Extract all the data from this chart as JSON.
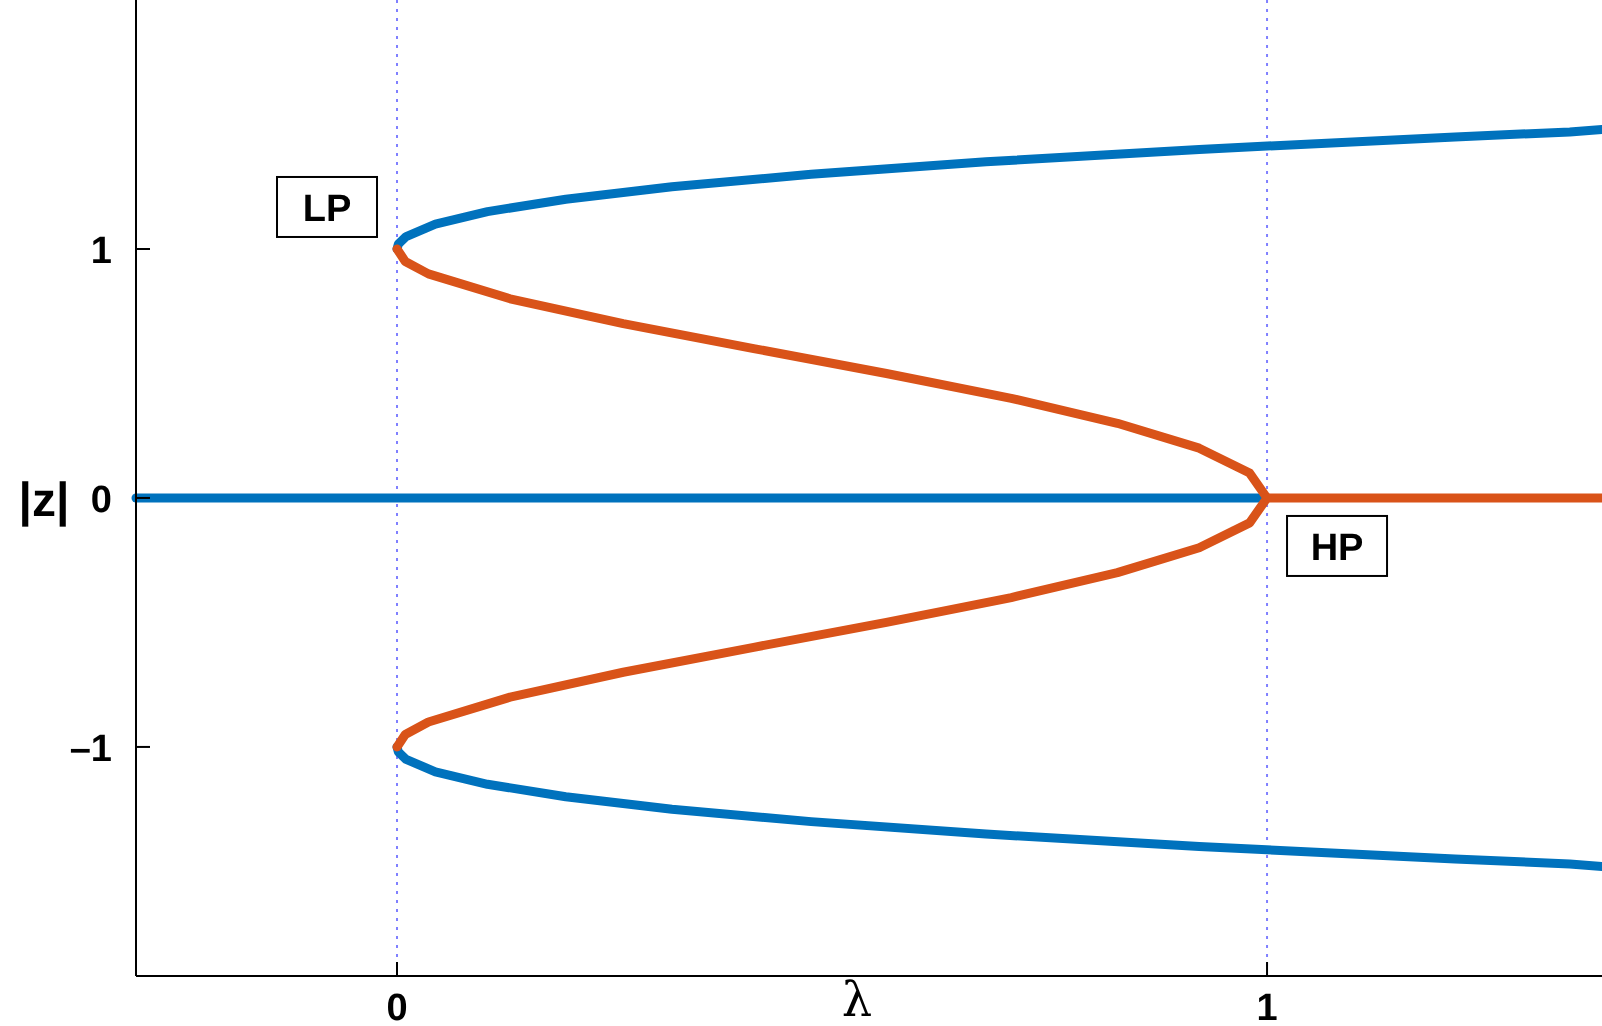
{
  "chart_data": {
    "type": "line",
    "xlabel": "λ",
    "ylabel": "|z|",
    "xlim": [
      -0.3,
      1.385
    ],
    "ylim": [
      -1.92,
      2.0
    ],
    "xticks": [
      0,
      1
    ],
    "yticks": [
      {
        "value": -1,
        "label": "–1"
      },
      0,
      1
    ],
    "grid": false,
    "line_style": "solid",
    "marker": "none",
    "series": [
      {
        "color": "#0072bd",
        "x": [
          0,
          0.0016,
          0.0105,
          0.0441,
          0.104,
          0.194,
          0.316,
          0.476,
          0.677,
          0.922,
          1.216,
          1.348,
          1.385
        ],
        "values": [
          1,
          1.02,
          1.05,
          1.1,
          1.15,
          1.2,
          1.25,
          1.3,
          1.35,
          1.4,
          1.45,
          1.47,
          1.48
        ]
      },
      {
        "color": "#0072bd",
        "x": [
          0,
          0.0016,
          0.0105,
          0.0441,
          0.104,
          0.194,
          0.316,
          0.476,
          0.677,
          0.922,
          1.216,
          1.348,
          1.385
        ],
        "values": [
          -1,
          -1.02,
          -1.05,
          -1.1,
          -1.15,
          -1.2,
          -1.25,
          -1.3,
          -1.35,
          -1.4,
          -1.45,
          -1.47,
          -1.48
        ]
      },
      {
        "color": "#0072bd",
        "x": [
          -0.3,
          1
        ],
        "values": [
          0,
          0
        ]
      },
      {
        "color": "#d95319",
        "x": [
          0,
          0.0095,
          0.0361,
          0.13,
          0.26,
          0.41,
          0.5625,
          0.706,
          0.828,
          0.922,
          0.98,
          1,
          0.98,
          0.922,
          0.828,
          0.706,
          0.5625,
          0.41,
          0.26,
          0.13,
          0.0361,
          0.0095,
          0
        ],
        "values": [
          1,
          0.95,
          0.9,
          0.8,
          0.7,
          0.6,
          0.5,
          0.4,
          0.3,
          0.2,
          0.1,
          0,
          -0.1,
          -0.2,
          -0.3,
          -0.4,
          -0.5,
          -0.6,
          -0.7,
          -0.8,
          -0.9,
          -0.95,
          -1
        ]
      },
      {
        "color": "#d95319",
        "x": [
          1,
          1.385
        ],
        "values": [
          0,
          0
        ]
      }
    ],
    "ref_lines": [
      {
        "axis": "x",
        "value": 0,
        "color": "#8080ff",
        "line_style": "dotted"
      },
      {
        "axis": "x",
        "value": 1,
        "color": "#8080ff",
        "line_style": "dotted"
      }
    ],
    "annotations": [
      {
        "text": "LP",
        "x": 0,
        "y": 1
      },
      {
        "text": "HP",
        "x": 1,
        "y": 0
      }
    ]
  }
}
